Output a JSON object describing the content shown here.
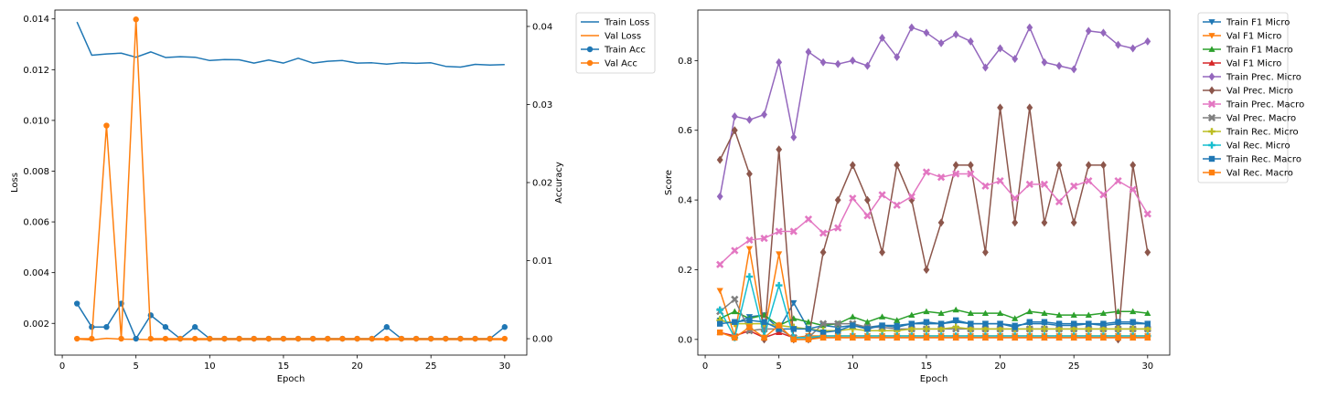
{
  "chart_data": [
    {
      "type": "line",
      "title": "",
      "xlabel": "Epoch",
      "ylabel": "Loss",
      "y2label": "Accuracy",
      "xlim": [
        -0.5,
        31.5
      ],
      "ylim": [
        0.00075,
        0.01435
      ],
      "y2lim": [
        -0.0021,
        0.0421
      ],
      "xticks": [
        0,
        5,
        10,
        15,
        20,
        25,
        30
      ],
      "xtick_labels": [
        "0",
        "5",
        "10",
        "15",
        "20",
        "25",
        "30"
      ],
      "yticks": [
        0.002,
        0.004,
        0.006,
        0.008,
        0.01,
        0.012,
        0.014
      ],
      "ytick_labels": [
        "0.002",
        "0.004",
        "0.006",
        "0.008",
        "0.010",
        "0.012",
        "0.014"
      ],
      "y2ticks": [
        0.0,
        0.01,
        0.02,
        0.03,
        0.04
      ],
      "y2tick_labels": [
        "0.00",
        "0.01",
        "0.02",
        "0.03",
        "0.04"
      ],
      "grid": false,
      "legend_position": "outside top-right",
      "x": [
        1,
        2,
        3,
        4,
        5,
        6,
        7,
        8,
        9,
        10,
        11,
        12,
        13,
        14,
        15,
        16,
        17,
        18,
        19,
        20,
        21,
        22,
        23,
        24,
        25,
        26,
        27,
        28,
        29,
        30
      ],
      "series": [
        {
          "name": "Train Loss",
          "axis": "left",
          "color": "#1f77b4",
          "marker": "none",
          "values": [
            0.01388,
            0.01257,
            0.01262,
            0.01265,
            0.01249,
            0.0127,
            0.01248,
            0.01251,
            0.01249,
            0.01236,
            0.0124,
            0.01239,
            0.01226,
            0.01238,
            0.01226,
            0.01245,
            0.01226,
            0.01233,
            0.01236,
            0.01226,
            0.01227,
            0.01222,
            0.01227,
            0.01225,
            0.01227,
            0.01213,
            0.0121,
            0.01221,
            0.01218,
            0.0122
          ]
        },
        {
          "name": "Val Loss",
          "axis": "left",
          "color": "#ff7f0e",
          "marker": "none",
          "values": [
            0.00138,
            0.00135,
            0.00141,
            0.00138,
            0.00137,
            0.00136,
            0.00136,
            0.00136,
            0.00136,
            0.00136,
            0.00136,
            0.00136,
            0.00136,
            0.00136,
            0.00136,
            0.00136,
            0.00136,
            0.00136,
            0.00136,
            0.00136,
            0.00136,
            0.00136,
            0.00136,
            0.00136,
            0.00136,
            0.00136,
            0.00136,
            0.00136,
            0.00136,
            0.00136
          ]
        },
        {
          "name": "Train Acc",
          "axis": "right",
          "color": "#1f77b4",
          "marker": "circle",
          "values": [
            0.0045,
            0.0015,
            0.0015,
            0.0045,
            0.0,
            0.003,
            0.0015,
            0.0,
            0.0015,
            0.0,
            0.0,
            0.0,
            0.0,
            0.0,
            0.0,
            0.0,
            0.0,
            0.0,
            0.0,
            0.0,
            0.0,
            0.0015,
            0.0,
            0.0,
            0.0,
            0.0,
            0.0,
            0.0,
            0.0,
            0.0015
          ]
        },
        {
          "name": "Val Acc",
          "axis": "right",
          "color": "#ff7f0e",
          "marker": "circle",
          "values": [
            0.0,
            0.0,
            0.0273,
            0.0,
            0.0409,
            0.0,
            0.0,
            0.0,
            0.0,
            0.0,
            0.0,
            0.0,
            0.0,
            0.0,
            0.0,
            0.0,
            0.0,
            0.0,
            0.0,
            0.0,
            0.0,
            0.0,
            0.0,
            0.0,
            0.0,
            0.0,
            0.0,
            0.0,
            0.0,
            0.0
          ]
        }
      ]
    },
    {
      "type": "line",
      "title": "",
      "xlabel": "Epoch",
      "ylabel": "Score",
      "xlim": [
        -0.5,
        31.5
      ],
      "ylim": [
        -0.045,
        0.945
      ],
      "xticks": [
        0,
        5,
        10,
        15,
        20,
        25,
        30
      ],
      "xtick_labels": [
        "0",
        "5",
        "10",
        "15",
        "20",
        "25",
        "30"
      ],
      "yticks": [
        0.0,
        0.2,
        0.4,
        0.6,
        0.8
      ],
      "ytick_labels": [
        "0.0",
        "0.2",
        "0.4",
        "0.6",
        "0.8"
      ],
      "grid": false,
      "legend_position": "outside top-right",
      "x": [
        1,
        2,
        3,
        4,
        5,
        6,
        7,
        8,
        9,
        10,
        11,
        12,
        13,
        14,
        15,
        16,
        17,
        18,
        19,
        20,
        21,
        22,
        23,
        24,
        25,
        26,
        27,
        28,
        29,
        30
      ],
      "series": [
        {
          "name": "Train F1 Micro",
          "color": "#1f77b4",
          "marker": "triangle-down",
          "values": [
            0.055,
            0.045,
            0.065,
            0.07,
            0.03,
            0.105,
            0.03,
            0.04,
            0.035,
            0.04,
            0.035,
            0.04,
            0.04,
            0.045,
            0.045,
            0.045,
            0.05,
            0.045,
            0.045,
            0.045,
            0.04,
            0.045,
            0.045,
            0.04,
            0.04,
            0.045,
            0.04,
            0.045,
            0.045,
            0.045
          ]
        },
        {
          "name": "Val F1 Micro",
          "color": "#ff7f0e",
          "marker": "triangle-down",
          "values": [
            0.14,
            0.01,
            0.26,
            0.02,
            0.245,
            0.005,
            0.01,
            0.01,
            0.01,
            0.01,
            0.01,
            0.01,
            0.01,
            0.01,
            0.01,
            0.01,
            0.01,
            0.01,
            0.01,
            0.01,
            0.01,
            0.01,
            0.01,
            0.01,
            0.01,
            0.01,
            0.01,
            0.01,
            0.01,
            0.01
          ]
        },
        {
          "name": "Train F1 Macro",
          "color": "#2ca02c",
          "marker": "triangle-up",
          "values": [
            0.06,
            0.08,
            0.06,
            0.07,
            0.04,
            0.06,
            0.05,
            0.04,
            0.045,
            0.065,
            0.05,
            0.065,
            0.055,
            0.07,
            0.08,
            0.075,
            0.085,
            0.075,
            0.075,
            0.075,
            0.06,
            0.08,
            0.075,
            0.07,
            0.07,
            0.07,
            0.075,
            0.08,
            0.08,
            0.075
          ]
        },
        {
          "name": "Val F1 Micro",
          "color": "#d62728",
          "marker": "triangle-up",
          "values": [
            0.02,
            0.01,
            0.025,
            0.005,
            0.02,
            0.005,
            0.005,
            0.005,
            0.005,
            0.005,
            0.005,
            0.005,
            0.005,
            0.005,
            0.005,
            0.005,
            0.005,
            0.005,
            0.005,
            0.005,
            0.005,
            0.005,
            0.005,
            0.005,
            0.005,
            0.005,
            0.005,
            0.005,
            0.005,
            0.005
          ]
        },
        {
          "name": "Train Prec. Micro",
          "color": "#9467bd",
          "marker": "diamond",
          "values": [
            0.41,
            0.64,
            0.63,
            0.645,
            0.795,
            0.58,
            0.825,
            0.795,
            0.79,
            0.8,
            0.785,
            0.865,
            0.81,
            0.895,
            0.88,
            0.85,
            0.875,
            0.855,
            0.78,
            0.835,
            0.805,
            0.895,
            0.795,
            0.785,
            0.775,
            0.885,
            0.88,
            0.845,
            0.835,
            0.855
          ]
        },
        {
          "name": "Val Prec. Micro",
          "color": "#8c564b",
          "marker": "diamond",
          "values": [
            0.515,
            0.6,
            0.475,
            0.0,
            0.545,
            0.0,
            0.0,
            0.25,
            0.4,
            0.5,
            0.4,
            0.25,
            0.5,
            0.4,
            0.2,
            0.335,
            0.5,
            0.5,
            0.25,
            0.665,
            0.335,
            0.665,
            0.335,
            0.5,
            0.335,
            0.5,
            0.5,
            0.0,
            0.5,
            0.25
          ]
        },
        {
          "name": "Train Prec. Macro",
          "color": "#e377c2",
          "marker": "x",
          "values": [
            0.215,
            0.255,
            0.285,
            0.29,
            0.31,
            0.31,
            0.345,
            0.305,
            0.32,
            0.405,
            0.355,
            0.415,
            0.385,
            0.41,
            0.48,
            0.465,
            0.475,
            0.475,
            0.44,
            0.455,
            0.405,
            0.445,
            0.445,
            0.395,
            0.44,
            0.455,
            0.415,
            0.455,
            0.43,
            0.36
          ]
        },
        {
          "name": "Val Prec. Macro",
          "color": "#7f7f7f",
          "marker": "x",
          "values": [
            0.08,
            0.115,
            0.025,
            0.03,
            0.03,
            0.005,
            0.005,
            0.045,
            0.045,
            0.045,
            0.035,
            0.035,
            0.03,
            0.03,
            0.03,
            0.03,
            0.03,
            0.03,
            0.03,
            0.03,
            0.03,
            0.03,
            0.03,
            0.03,
            0.03,
            0.03,
            0.03,
            0.03,
            0.03,
            0.03
          ]
        },
        {
          "name": "Train Rec. Micro",
          "color": "#bcbd22",
          "marker": "plus",
          "values": [
            0.055,
            0.045,
            0.045,
            0.045,
            0.04,
            0.035,
            0.03,
            0.025,
            0.025,
            0.03,
            0.025,
            0.025,
            0.025,
            0.03,
            0.03,
            0.03,
            0.035,
            0.03,
            0.03,
            0.03,
            0.03,
            0.03,
            0.03,
            0.03,
            0.03,
            0.03,
            0.03,
            0.03,
            0.03,
            0.03
          ]
        },
        {
          "name": "Val Rec. Micro",
          "color": "#17becf",
          "marker": "plus",
          "values": [
            0.085,
            0.005,
            0.18,
            0.01,
            0.155,
            0.005,
            0.005,
            0.01,
            0.01,
            0.01,
            0.01,
            0.01,
            0.01,
            0.01,
            0.01,
            0.01,
            0.01,
            0.01,
            0.01,
            0.01,
            0.01,
            0.01,
            0.01,
            0.01,
            0.01,
            0.01,
            0.01,
            0.01,
            0.01,
            0.01
          ]
        },
        {
          "name": "Train Rec. Macro",
          "color": "#1f77b4",
          "marker": "square",
          "values": [
            0.045,
            0.05,
            0.055,
            0.05,
            0.03,
            0.03,
            0.03,
            0.02,
            0.025,
            0.04,
            0.03,
            0.04,
            0.035,
            0.045,
            0.05,
            0.045,
            0.055,
            0.045,
            0.045,
            0.045,
            0.035,
            0.05,
            0.05,
            0.045,
            0.045,
            0.045,
            0.045,
            0.05,
            0.05,
            0.045
          ]
        },
        {
          "name": "Val Rec. Macro",
          "color": "#ff7f0e",
          "marker": "square",
          "values": [
            0.02,
            0.005,
            0.035,
            0.005,
            0.04,
            0.0,
            0.0,
            0.005,
            0.005,
            0.005,
            0.005,
            0.005,
            0.005,
            0.005,
            0.005,
            0.005,
            0.005,
            0.005,
            0.005,
            0.005,
            0.005,
            0.005,
            0.005,
            0.005,
            0.005,
            0.005,
            0.005,
            0.005,
            0.005,
            0.005
          ]
        }
      ]
    }
  ]
}
